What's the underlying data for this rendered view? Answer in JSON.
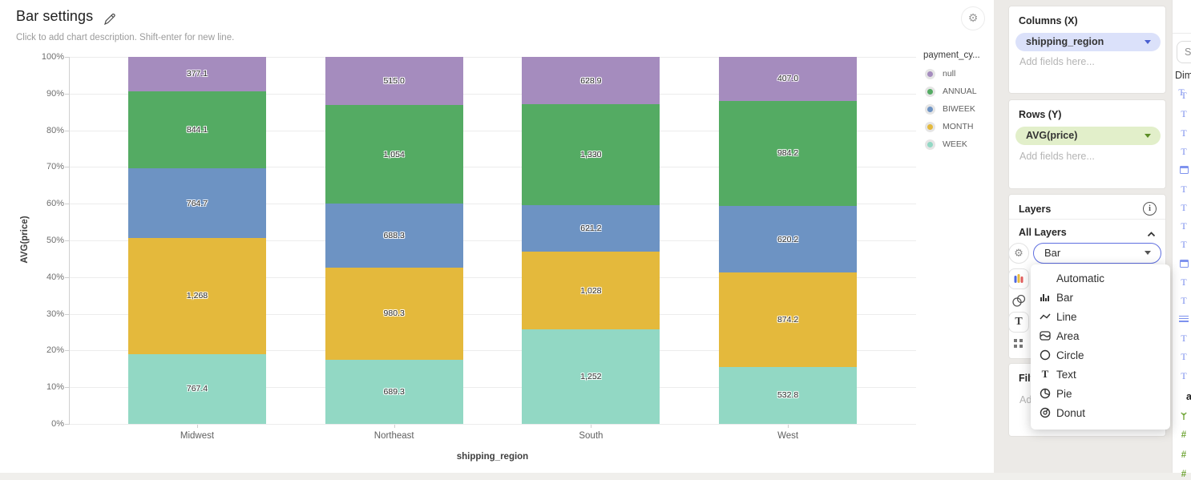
{
  "header": {
    "title": "Bar settings",
    "subtitle": "Click to add chart description. Shift-enter for new line."
  },
  "chart_data": {
    "type": "bar",
    "stack": "percent-normalized",
    "categories": [
      "Midwest",
      "Northeast",
      "South",
      "West"
    ],
    "series": [
      {
        "name": "null",
        "color": "#a58cbe",
        "values": [
          377.1,
          515.0,
          628.9,
          407.0
        ],
        "value_labels": [
          "377.1",
          "515.0",
          "628.9",
          "407.0"
        ]
      },
      {
        "name": "ANNUAL",
        "color": "#54ab63",
        "values": [
          844.1,
          1054,
          1330,
          984.2
        ],
        "value_labels": [
          "844.1",
          "1,054",
          "1,330",
          "984.2"
        ]
      },
      {
        "name": "BIWEEK",
        "color": "#6d93c3",
        "values": [
          764.7,
          688.3,
          621.2,
          620.2
        ],
        "value_labels": [
          "764.7",
          "688.3",
          "621.2",
          "620.2"
        ]
      },
      {
        "name": "MONTH",
        "color": "#e4b93c",
        "values": [
          1268,
          980.3,
          1028,
          874.2
        ],
        "value_labels": [
          "1,268",
          "980.3",
          "1,028",
          "874.2"
        ]
      },
      {
        "name": "WEEK",
        "color": "#92d8c4",
        "values": [
          767.4,
          689.3,
          1252,
          532.8
        ],
        "value_labels": [
          "767.4",
          "689.3",
          "1,252",
          "532.8"
        ]
      }
    ],
    "stack_order_bottom_to_top": [
      "WEEK",
      "MONTH",
      "BIWEEK",
      "ANNUAL",
      "null"
    ],
    "legend_title": "payment_cy...",
    "legend_position": "right",
    "xlabel": "shipping_region",
    "ylabel": "AVG(price)",
    "y_ticks": [
      "0%",
      "10%",
      "20%",
      "30%",
      "40%",
      "50%",
      "60%",
      "70%",
      "80%",
      "90%",
      "100%"
    ],
    "ylim": [
      0,
      1
    ],
    "grid": true
  },
  "columns_panel": {
    "title": "Columns (X)",
    "field": "shipping_region",
    "placeholder": "Add fields here..."
  },
  "rows_panel": {
    "title": "Rows (Y)",
    "field": "AVG(price)",
    "placeholder": "Add fields here..."
  },
  "layers_panel": {
    "title": "Layers",
    "all_layers_label": "All Layers",
    "layer_type_value": "Bar",
    "menu_items": [
      {
        "label": "Automatic"
      },
      {
        "label": "Bar"
      },
      {
        "label": "Line"
      },
      {
        "label": "Area"
      },
      {
        "label": "Circle"
      },
      {
        "label": "Text"
      },
      {
        "label": "Pie"
      },
      {
        "label": "Donut"
      }
    ]
  },
  "filters_panel": {
    "title": "Filters",
    "placeholder": "Add fields here..."
  },
  "fields_panel": {
    "search_placeholder": "Search...",
    "dimensions_label": "Dimensions",
    "section_fragment": "a",
    "dimension_field_icons": [
      "text-wave",
      "text",
      "text",
      "text",
      "calendar",
      "text",
      "text",
      "text",
      "text",
      "calendar",
      "text",
      "text",
      "list",
      "text",
      "text",
      "text"
    ],
    "measure_field_icons": [
      "tree",
      "number",
      "number",
      "number"
    ]
  },
  "colors": {
    "pill_columns_bg": "#dbe1fa",
    "pill_rows_bg": "#e2efca",
    "select_border": "#5f6fe0",
    "panel_bg": "#eceae7",
    "grid": "#ececec"
  }
}
